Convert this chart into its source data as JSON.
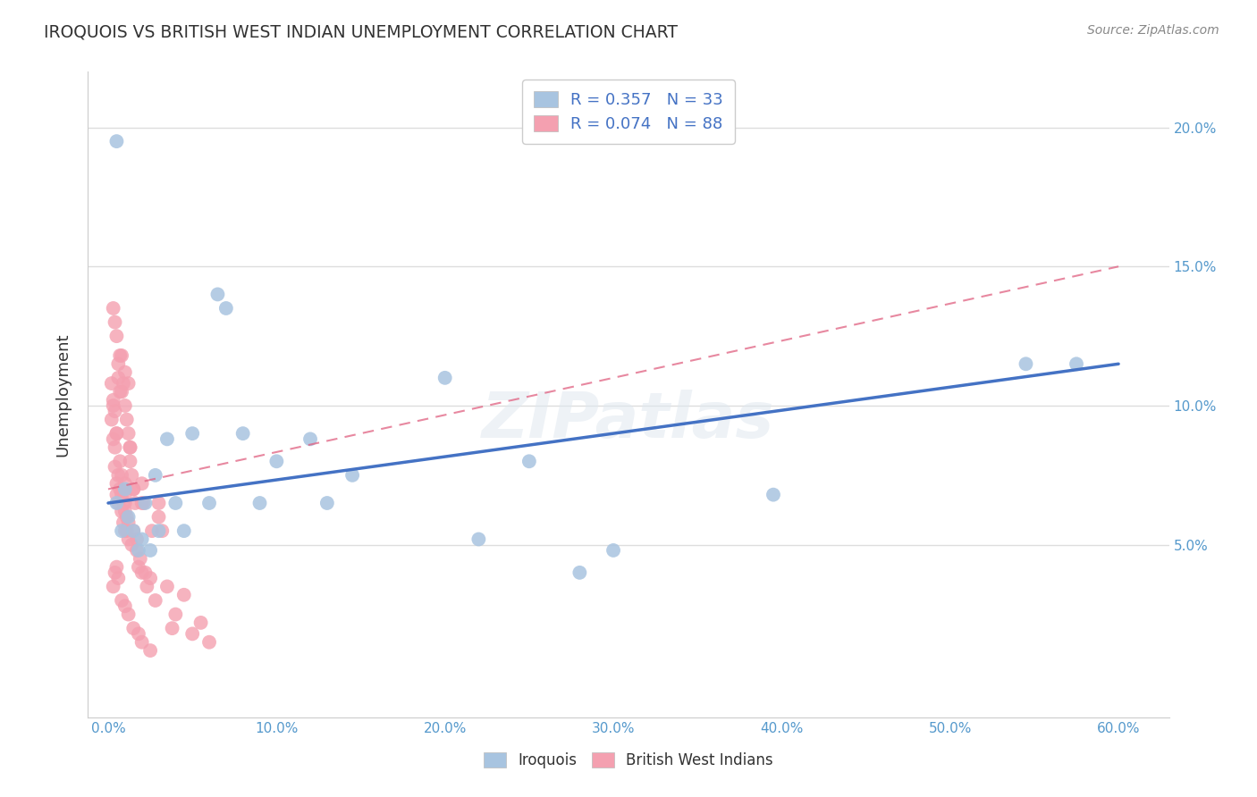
{
  "title": "IROQUOIS VS BRITISH WEST INDIAN UNEMPLOYMENT CORRELATION CHART",
  "source": "Source: ZipAtlas.com",
  "ylabel": "Unemployment",
  "x_tick_labels": [
    "0.0%",
    "10.0%",
    "20.0%",
    "30.0%",
    "40.0%",
    "50.0%",
    "60.0%"
  ],
  "x_tick_values": [
    0,
    10,
    20,
    30,
    40,
    50,
    60
  ],
  "y_tick_labels": [
    "5.0%",
    "10.0%",
    "15.0%",
    "20.0%"
  ],
  "y_tick_values": [
    5,
    10,
    15,
    20
  ],
  "xlim": [
    -1.2,
    63
  ],
  "ylim": [
    -1.2,
    22
  ],
  "iroquois_R": 0.357,
  "iroquois_N": 33,
  "bwi_R": 0.074,
  "bwi_N": 88,
  "iroquois_color": "#a8c4e0",
  "bwi_color": "#f4a0b0",
  "iroquois_line_color": "#4472c4",
  "bwi_line_color": "#e06080",
  "legend_text_color": "#4472c4",
  "title_color": "#333333",
  "grid_color": "#dddddd",
  "watermark": "ZIPatlas",
  "iroquois_x": [
    0.5,
    0.8,
    1.0,
    1.2,
    1.5,
    1.8,
    2.0,
    2.2,
    2.5,
    2.8,
    3.0,
    3.5,
    4.0,
    4.5,
    5.0,
    6.0,
    6.5,
    7.0,
    8.0,
    9.0,
    10.0,
    12.0,
    13.0,
    14.5,
    20.0,
    22.0,
    25.0,
    28.0,
    30.0,
    39.5,
    54.5,
    57.5,
    0.5
  ],
  "iroquois_y": [
    6.5,
    5.5,
    7.0,
    6.0,
    5.5,
    4.8,
    5.2,
    6.5,
    4.8,
    7.5,
    5.5,
    8.8,
    6.5,
    5.5,
    9.0,
    6.5,
    14.0,
    13.5,
    9.0,
    6.5,
    8.0,
    8.8,
    6.5,
    7.5,
    11.0,
    5.2,
    8.0,
    4.0,
    4.8,
    6.8,
    11.5,
    11.5,
    19.5
  ],
  "bwi_x": [
    0.2,
    0.3,
    0.3,
    0.4,
    0.4,
    0.5,
    0.5,
    0.5,
    0.6,
    0.6,
    0.7,
    0.7,
    0.8,
    0.8,
    0.8,
    0.9,
    0.9,
    1.0,
    1.0,
    1.0,
    1.0,
    1.0,
    1.1,
    1.1,
    1.2,
    1.2,
    1.3,
    1.3,
    1.4,
    1.4,
    1.5,
    1.5,
    1.6,
    1.7,
    1.7,
    1.8,
    1.9,
    2.0,
    2.0,
    2.1,
    2.2,
    2.3,
    2.5,
    2.6,
    2.8,
    3.0,
    3.2,
    3.5,
    3.8,
    4.0,
    4.5,
    5.0,
    5.5,
    6.0,
    0.3,
    0.4,
    0.5,
    0.6,
    0.7,
    0.8,
    0.9,
    1.0,
    1.1,
    1.2,
    1.3,
    0.3,
    0.4,
    0.5,
    0.6,
    0.8,
    1.0,
    1.2,
    1.5,
    1.8,
    2.0,
    2.5,
    0.2,
    0.3,
    0.4,
    0.5,
    0.6,
    0.7,
    0.8,
    1.0,
    1.2,
    1.5,
    2.0,
    3.0
  ],
  "bwi_y": [
    9.5,
    10.0,
    8.8,
    7.8,
    8.5,
    7.2,
    9.0,
    6.8,
    7.5,
    6.5,
    7.0,
    8.0,
    6.2,
    7.5,
    6.8,
    5.8,
    6.5,
    6.2,
    6.5,
    6.8,
    7.2,
    5.5,
    6.0,
    5.5,
    5.2,
    5.8,
    8.5,
    8.0,
    5.0,
    7.5,
    5.5,
    7.0,
    6.5,
    4.8,
    5.2,
    4.2,
    4.5,
    4.0,
    7.2,
    6.5,
    4.0,
    3.5,
    3.8,
    5.5,
    3.0,
    6.5,
    5.5,
    3.5,
    2.0,
    2.5,
    3.2,
    1.8,
    2.2,
    1.5,
    13.5,
    13.0,
    12.5,
    11.5,
    11.8,
    10.5,
    10.8,
    10.0,
    9.5,
    9.0,
    8.5,
    3.5,
    4.0,
    4.2,
    3.8,
    3.0,
    2.8,
    2.5,
    2.0,
    1.8,
    1.5,
    1.2,
    10.8,
    10.2,
    9.8,
    9.0,
    11.0,
    10.5,
    11.8,
    11.2,
    10.8,
    7.0,
    6.5,
    6.0
  ]
}
